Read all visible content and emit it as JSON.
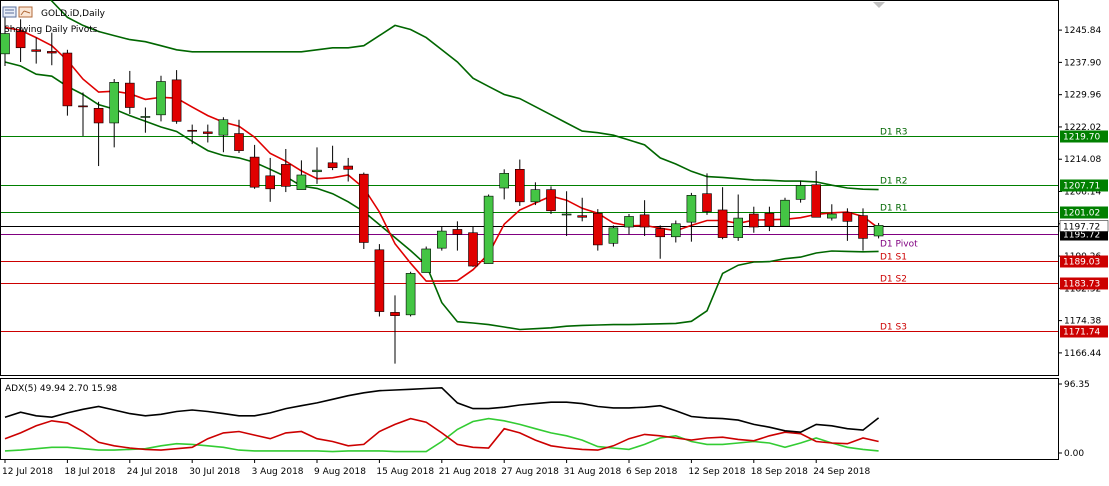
{
  "window": {
    "title": "GOLD.iD,Daily",
    "status_line": "Showing Daily Pivots.",
    "icon": "chart-window-icon"
  },
  "main_chart": {
    "price_axis": {
      "labels": [
        "1245.84",
        "1237.90",
        "1229.96",
        "1222.02",
        "1214.08",
        "1206.14",
        "1198.20",
        "1190.26",
        "1182.32",
        "1174.38",
        "1166.44"
      ]
    },
    "pivots": [
      {
        "name": "D1 R3",
        "price": 1219.7,
        "tag": "1219.70",
        "color": "#008000",
        "tag_color": "#008000"
      },
      {
        "name": "D1 R2",
        "price": 1207.71,
        "tag": "1207.71",
        "color": "#008000",
        "tag_color": "#008000"
      },
      {
        "name": "D1 R1",
        "price": 1201.02,
        "tag": "1201.02",
        "color": "#008000",
        "tag_color": "#008000"
      },
      {
        "name": "D1 Pivot",
        "price": 1195.72,
        "tag": "1195.72",
        "color": "#800080",
        "tag_color": "#000000"
      },
      {
        "name": "D1 S1",
        "price": 1189.03,
        "tag": "1189.03",
        "color": "#cc0000",
        "tag_color": "#cc0000"
      },
      {
        "name": "D1 S2",
        "price": 1183.73,
        "tag": "1183.73",
        "color": "#cc0000",
        "tag_color": "#cc0000"
      },
      {
        "name": "D1 S3",
        "price": 1171.74,
        "tag": "1171.74",
        "color": "#cc0000",
        "tag_color": "#cc0000"
      }
    ],
    "current_price_tag": "1197.72",
    "colors": {
      "bull": "#44c544",
      "bear": "#e00000",
      "band": "#006600",
      "ma": "#e00000"
    }
  },
  "chart_data": {
    "type": "candlestick",
    "series": [
      {
        "name": "GOLD.iD,Daily"
      }
    ],
    "candles": [
      {
        "o": 1240.0,
        "h": 1249.5,
        "l": 1237.0,
        "c": 1245.0
      },
      {
        "o": 1245.5,
        "h": 1248.5,
        "l": 1238.0,
        "c": 1241.5
      },
      {
        "o": 1241.0,
        "h": 1244.0,
        "l": 1237.6,
        "c": 1240.6
      },
      {
        "o": 1240.6,
        "h": 1245.2,
        "l": 1237.2,
        "c": 1240.2
      },
      {
        "o": 1240.2,
        "h": 1241.0,
        "l": 1224.8,
        "c": 1227.2
      },
      {
        "o": 1227.2,
        "h": 1230.5,
        "l": 1219.8,
        "c": 1227.0
      },
      {
        "o": 1226.6,
        "h": 1228.2,
        "l": 1212.4,
        "c": 1223.0
      },
      {
        "o": 1223.0,
        "h": 1233.8,
        "l": 1217.0,
        "c": 1233.0
      },
      {
        "o": 1232.8,
        "h": 1235.8,
        "l": 1225.2,
        "c": 1226.8
      },
      {
        "o": 1224.6,
        "h": 1226.8,
        "l": 1220.6,
        "c": 1224.6
      },
      {
        "o": 1225.0,
        "h": 1234.6,
        "l": 1223.4,
        "c": 1233.2
      },
      {
        "o": 1233.6,
        "h": 1236.0,
        "l": 1222.8,
        "c": 1223.4
      },
      {
        "o": 1221.2,
        "h": 1222.6,
        "l": 1217.8,
        "c": 1221.0
      },
      {
        "o": 1220.8,
        "h": 1222.6,
        "l": 1218.2,
        "c": 1220.4
      },
      {
        "o": 1220.0,
        "h": 1224.4,
        "l": 1215.8,
        "c": 1223.8
      },
      {
        "o": 1220.4,
        "h": 1223.8,
        "l": 1215.6,
        "c": 1216.2
      },
      {
        "o": 1214.6,
        "h": 1217.6,
        "l": 1206.8,
        "c": 1207.2
      },
      {
        "o": 1210.0,
        "h": 1214.4,
        "l": 1203.6,
        "c": 1206.8
      },
      {
        "o": 1212.8,
        "h": 1216.6,
        "l": 1206.0,
        "c": 1207.4
      },
      {
        "o": 1206.6,
        "h": 1213.8,
        "l": 1206.6,
        "c": 1210.2
      },
      {
        "o": 1211.0,
        "h": 1217.0,
        "l": 1208.0,
        "c": 1211.4
      },
      {
        "o": 1213.2,
        "h": 1217.4,
        "l": 1211.4,
        "c": 1212.0
      },
      {
        "o": 1212.4,
        "h": 1214.4,
        "l": 1208.6,
        "c": 1211.6
      },
      {
        "o": 1210.4,
        "h": 1210.8,
        "l": 1192.0,
        "c": 1193.6
      },
      {
        "o": 1191.8,
        "h": 1193.2,
        "l": 1175.4,
        "c": 1176.6
      },
      {
        "o": 1176.4,
        "h": 1180.6,
        "l": 1163.8,
        "c": 1175.6
      },
      {
        "o": 1175.8,
        "h": 1186.4,
        "l": 1175.4,
        "c": 1186.0
      },
      {
        "o": 1186.2,
        "h": 1192.6,
        "l": 1186.2,
        "c": 1192.0
      },
      {
        "o": 1192.2,
        "h": 1197.6,
        "l": 1191.6,
        "c": 1196.4
      },
      {
        "o": 1196.8,
        "h": 1198.8,
        "l": 1191.6,
        "c": 1195.6
      },
      {
        "o": 1196.0,
        "h": 1197.6,
        "l": 1187.6,
        "c": 1187.8
      },
      {
        "o": 1188.4,
        "h": 1205.4,
        "l": 1188.4,
        "c": 1205.0
      },
      {
        "o": 1207.0,
        "h": 1211.6,
        "l": 1204.2,
        "c": 1210.6
      },
      {
        "o": 1211.6,
        "h": 1214.0,
        "l": 1202.6,
        "c": 1203.6
      },
      {
        "o": 1203.6,
        "h": 1208.4,
        "l": 1202.8,
        "c": 1206.6
      },
      {
        "o": 1206.6,
        "h": 1207.4,
        "l": 1200.6,
        "c": 1201.4
      },
      {
        "o": 1200.4,
        "h": 1206.2,
        "l": 1195.2,
        "c": 1200.6
      },
      {
        "o": 1200.2,
        "h": 1204.6,
        "l": 1198.8,
        "c": 1199.8
      },
      {
        "o": 1200.8,
        "h": 1201.8,
        "l": 1191.6,
        "c": 1193.0
      },
      {
        "o": 1193.4,
        "h": 1197.8,
        "l": 1192.6,
        "c": 1197.2
      },
      {
        "o": 1197.4,
        "h": 1200.6,
        "l": 1195.6,
        "c": 1200.0
      },
      {
        "o": 1200.4,
        "h": 1204.0,
        "l": 1195.2,
        "c": 1197.4
      },
      {
        "o": 1197.0,
        "h": 1197.8,
        "l": 1189.6,
        "c": 1195.0
      },
      {
        "o": 1195.0,
        "h": 1199.0,
        "l": 1193.6,
        "c": 1198.2
      },
      {
        "o": 1198.6,
        "h": 1205.8,
        "l": 1193.8,
        "c": 1205.2
      },
      {
        "o": 1205.6,
        "h": 1210.6,
        "l": 1200.4,
        "c": 1201.2
      },
      {
        "o": 1201.6,
        "h": 1207.2,
        "l": 1194.4,
        "c": 1194.8
      },
      {
        "o": 1194.8,
        "h": 1205.4,
        "l": 1194.0,
        "c": 1199.6
      },
      {
        "o": 1200.6,
        "h": 1202.4,
        "l": 1196.0,
        "c": 1197.4
      },
      {
        "o": 1200.8,
        "h": 1202.4,
        "l": 1196.4,
        "c": 1197.6
      },
      {
        "o": 1197.6,
        "h": 1204.6,
        "l": 1197.6,
        "c": 1204.0
      },
      {
        "o": 1204.2,
        "h": 1208.8,
        "l": 1203.4,
        "c": 1207.6
      },
      {
        "o": 1207.8,
        "h": 1211.2,
        "l": 1199.8,
        "c": 1199.8
      },
      {
        "o": 1199.6,
        "h": 1203.0,
        "l": 1199.0,
        "c": 1200.6
      },
      {
        "o": 1201.0,
        "h": 1202.0,
        "l": 1194.0,
        "c": 1198.8
      },
      {
        "o": 1200.2,
        "h": 1202.0,
        "l": 1191.6,
        "c": 1194.6
      },
      {
        "o": 1195.2,
        "h": 1198.4,
        "l": 1194.6,
        "c": 1197.8
      }
    ],
    "upper_band": [
      1266,
      1262,
      1257,
      1253,
      1249,
      1247,
      1245.5,
      1244.5,
      1243.5,
      1243,
      1242,
      1241,
      1240.5,
      1240.5,
      1240.5,
      1240.5,
      1240.5,
      1240.5,
      1240.5,
      1240.5,
      1241,
      1241.5,
      1241.5,
      1242,
      1244.5,
      1247,
      1246,
      1244,
      1241,
      1238,
      1234,
      1232,
      1230,
      1229,
      1227,
      1225,
      1223,
      1221,
      1220.6,
      1220,
      1218.8,
      1217.6,
      1214.4,
      1212.9,
      1211.1,
      1209.8,
      1209.6,
      1209.3,
      1209.0,
      1208.9,
      1208.7,
      1208.7,
      1208.5,
      1207.7,
      1207.0,
      1206.7,
      1206.6
    ],
    "lower_band": [
      1238,
      1237,
      1235,
      1234.5,
      1232,
      1230,
      1227.5,
      1226.4,
      1224.8,
      1223.4,
      1222.0,
      1220.9,
      1218.5,
      1216.2,
      1215.0,
      1214.4,
      1213.3,
      1211.6,
      1209.8,
      1207.5,
      1206.9,
      1205.6,
      1203.6,
      1201.2,
      1198.0,
      1194.8,
      1191.6,
      1188.1,
      1178.8,
      1174.1,
      1173.8,
      1173.4,
      1172.8,
      1172.2,
      1172.4,
      1172.6,
      1173.0,
      1173.2,
      1173.3,
      1173.4,
      1173.4,
      1173.5,
      1173.6,
      1173.7,
      1174.2,
      1176.8,
      1186.0,
      1188.0,
      1188.8,
      1188.9,
      1189.6,
      1190.0,
      1191.0,
      1191.5,
      1191.4,
      1191.3,
      1191.4
    ],
    "moving_average": [
      1246.5,
      1245.8,
      1244.0,
      1242.0,
      1238.4,
      1233.8,
      1230.6,
      1230.8,
      1230.2,
      1228.8,
      1229.3,
      1229.1,
      1226.9,
      1224.8,
      1223.2,
      1222.2,
      1219.5,
      1215.5,
      1213.6,
      1211.2,
      1209.3,
      1209.5,
      1210.2,
      1207.0,
      1201.1,
      1193.3,
      1188.5,
      1184.1,
      1184.1,
      1184.2,
      1186.9,
      1190.8,
      1198.1,
      1201.6,
      1203.3,
      1205.0,
      1204.0,
      1202.0,
      1200.8,
      1198.4,
      1197.7,
      1197.8,
      1197.1,
      1196.5,
      1197.8,
      1199.0,
      1199.0,
      1198.3,
      1199.1,
      1199.2,
      1199.3,
      1199.7,
      1200.5,
      1200.9,
      1201.1,
      1200.0,
      1197.1
    ],
    "ylim": [
      1161.0,
      1253.0
    ]
  },
  "adx_panel": {
    "title": "ADX(5) 49.94 2.70 15.98",
    "axis_labels": [
      "96.35",
      "0.00"
    ],
    "ylim": [
      0,
      96.35
    ],
    "adx": [
      50,
      57,
      52,
      50,
      56,
      61,
      65,
      60,
      55,
      52,
      54,
      58,
      60,
      58,
      55,
      52,
      52,
      56,
      62,
      66,
      70,
      75,
      80,
      84,
      87,
      88,
      89,
      90,
      91,
      70,
      62,
      62,
      64,
      67,
      69,
      71,
      71,
      69,
      65,
      63,
      63,
      64,
      66,
      59,
      51,
      49,
      48,
      46,
      40,
      36,
      31,
      29,
      40,
      38,
      34,
      32,
      49
    ],
    "plus_di": [
      3,
      4,
      6,
      8,
      8,
      6,
      4,
      4,
      5,
      6,
      10,
      13,
      12,
      10,
      8,
      4,
      3,
      3,
      3,
      3,
      3,
      2,
      3,
      3,
      3,
      2,
      2,
      2,
      16,
      33,
      44,
      48,
      45,
      40,
      34,
      28,
      24,
      18,
      9,
      7,
      5,
      12,
      21,
      24,
      16,
      12,
      12,
      14,
      16,
      14,
      8,
      14,
      21,
      14,
      8,
      5,
      3
    ],
    "minus_di": [
      20,
      28,
      38,
      45,
      42,
      30,
      15,
      10,
      7,
      5,
      4,
      6,
      8,
      20,
      28,
      30,
      25,
      20,
      28,
      30,
      20,
      16,
      10,
      12,
      30,
      40,
      48,
      43,
      28,
      12,
      8,
      7,
      34,
      28,
      18,
      10,
      7,
      5,
      4,
      10,
      20,
      26,
      24,
      21,
      18,
      21,
      22,
      19,
      17,
      24,
      29,
      27,
      16,
      14,
      13,
      21,
      16
    ],
    "colors": {
      "adx": "#000000",
      "plus_di": "#33cc33",
      "minus_di": "#cc0000"
    }
  },
  "time_axis": {
    "labels": [
      {
        "text": "12 Jul 2018",
        "bar": 0
      },
      {
        "text": "18 Jul 2018",
        "bar": 4
      },
      {
        "text": "24 Jul 2018",
        "bar": 8
      },
      {
        "text": "30 Jul 2018",
        "bar": 12
      },
      {
        "text": "3 Aug 2018",
        "bar": 16
      },
      {
        "text": "9 Aug 2018",
        "bar": 20
      },
      {
        "text": "15 Aug 2018",
        "bar": 24
      },
      {
        "text": "21 Aug 2018",
        "bar": 28
      },
      {
        "text": "27 Aug 2018",
        "bar": 32
      },
      {
        "text": "31 Aug 2018",
        "bar": 36
      },
      {
        "text": "6 Sep 2018",
        "bar": 40
      },
      {
        "text": "12 Sep 2018",
        "bar": 44
      },
      {
        "text": "18 Sep 2018",
        "bar": 48
      },
      {
        "text": "24 Sep 2018",
        "bar": 52
      }
    ]
  }
}
